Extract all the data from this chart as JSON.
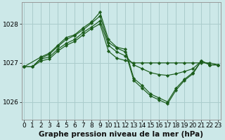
{
  "title": "Graphe pression niveau de la mer (hPa)",
  "bg_color": "#cce8e8",
  "line_color": "#1a5c1a",
  "grid_color": "#aacccc",
  "x_ticks": [
    0,
    1,
    2,
    3,
    4,
    5,
    6,
    7,
    8,
    9,
    10,
    11,
    12,
    13,
    14,
    15,
    16,
    17,
    18,
    19,
    20,
    21,
    22,
    23
  ],
  "y_ticks": [
    1026,
    1027,
    1028
  ],
  "ylim": [
    1025.55,
    1028.55
  ],
  "xlim": [
    -0.3,
    23.3
  ],
  "series": [
    {
      "points": [
        [
          0,
          1026.9
        ],
        [
          1,
          1026.9
        ],
        [
          2,
          1027.05
        ],
        [
          3,
          1027.1
        ],
        [
          4,
          1027.3
        ],
        [
          5,
          1027.45
        ],
        [
          6,
          1027.55
        ],
        [
          7,
          1027.72
        ],
        [
          8,
          1027.88
        ],
        [
          9,
          1028.0
        ],
        [
          10,
          1027.3
        ],
        [
          11,
          1027.12
        ],
        [
          12,
          1027.06
        ],
        [
          13,
          1027.0
        ],
        [
          14,
          1027.0
        ],
        [
          15,
          1027.0
        ],
        [
          16,
          1027.0
        ],
        [
          17,
          1027.0
        ],
        [
          18,
          1027.0
        ],
        [
          19,
          1027.0
        ],
        [
          20,
          1027.0
        ],
        [
          21,
          1027.0
        ],
        [
          22,
          1027.0
        ],
        [
          23,
          1026.95
        ]
      ]
    },
    {
      "points": [
        [
          0,
          1026.9
        ],
        [
          1,
          1026.9
        ],
        [
          2,
          1027.1
        ],
        [
          3,
          1027.15
        ],
        [
          4,
          1027.35
        ],
        [
          5,
          1027.5
        ],
        [
          6,
          1027.6
        ],
        [
          7,
          1027.78
        ],
        [
          8,
          1027.92
        ],
        [
          9,
          1028.08
        ],
        [
          10,
          1027.45
        ],
        [
          11,
          1027.28
        ],
        [
          12,
          1027.18
        ],
        [
          13,
          1026.95
        ],
        [
          14,
          1026.85
        ],
        [
          15,
          1026.75
        ],
        [
          16,
          1026.7
        ],
        [
          17,
          1026.68
        ],
        [
          18,
          1026.72
        ],
        [
          19,
          1026.78
        ],
        [
          20,
          1026.85
        ],
        [
          21,
          1027.05
        ],
        [
          22,
          1026.95
        ],
        [
          23,
          1026.95
        ]
      ]
    },
    {
      "points": [
        [
          0,
          1026.9
        ],
        [
          1,
          1026.9
        ],
        [
          2,
          1027.12
        ],
        [
          3,
          1027.22
        ],
        [
          4,
          1027.42
        ],
        [
          5,
          1027.6
        ],
        [
          6,
          1027.7
        ],
        [
          7,
          1027.85
        ],
        [
          8,
          1028.02
        ],
        [
          9,
          1028.2
        ],
        [
          10,
          1027.52
        ],
        [
          11,
          1027.38
        ],
        [
          12,
          1027.28
        ],
        [
          13,
          1026.55
        ],
        [
          14,
          1026.35
        ],
        [
          15,
          1026.15
        ],
        [
          16,
          1026.05
        ],
        [
          17,
          1025.95
        ],
        [
          18,
          1026.3
        ],
        [
          19,
          1026.55
        ],
        [
          20,
          1026.72
        ],
        [
          21,
          1027.05
        ],
        [
          22,
          1026.95
        ],
        [
          23,
          1026.95
        ]
      ]
    },
    {
      "points": [
        [
          0,
          1026.9
        ],
        [
          2,
          1027.15
        ],
        [
          3,
          1027.25
        ],
        [
          4,
          1027.45
        ],
        [
          5,
          1027.65
        ],
        [
          6,
          1027.72
        ],
        [
          7,
          1027.9
        ],
        [
          8,
          1028.05
        ],
        [
          9,
          1028.3
        ],
        [
          10,
          1027.6
        ],
        [
          11,
          1027.4
        ],
        [
          12,
          1027.35
        ],
        [
          13,
          1026.6
        ],
        [
          14,
          1026.42
        ],
        [
          15,
          1026.2
        ],
        [
          16,
          1026.1
        ],
        [
          17,
          1026.0
        ],
        [
          18,
          1026.35
        ],
        [
          19,
          1026.58
        ],
        [
          20,
          1026.75
        ],
        [
          21,
          1027.05
        ],
        [
          22,
          1026.95
        ],
        [
          23,
          1026.95
        ]
      ]
    }
  ],
  "title_fontsize": 7.5,
  "tick_fontsize": 6.5
}
